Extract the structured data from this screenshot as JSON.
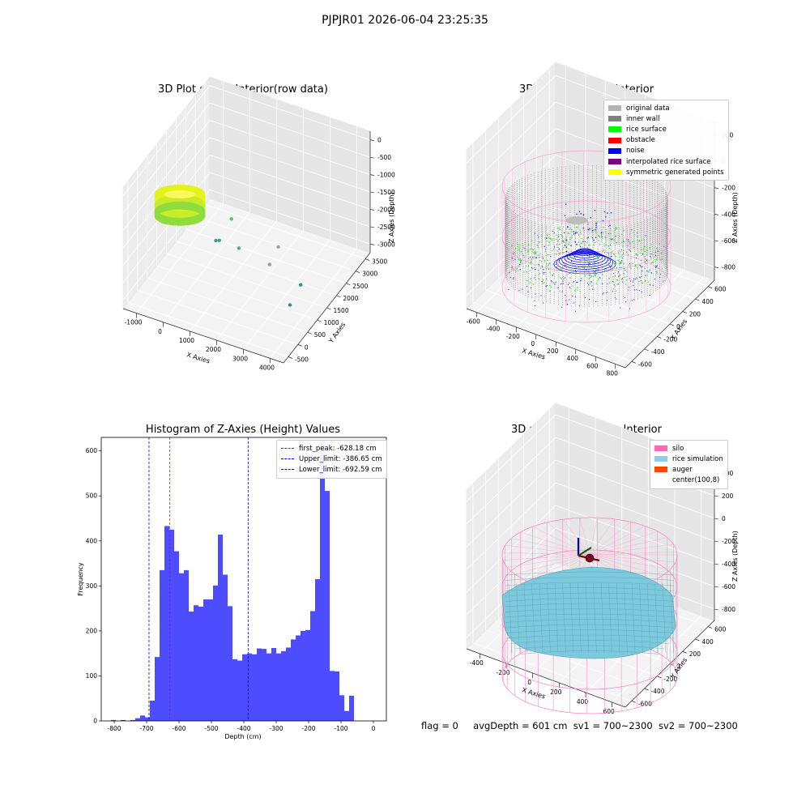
{
  "suptitle": "PJPJR01 2026-06-04 23:25:35",
  "panels": {
    "raw": {
      "title": "3D Plot of Silo Interior(row data)",
      "xlabel": "X Axies",
      "ylabel": "Y Axies",
      "zlabel": "Z Axies (Depth)",
      "xticks": [
        "-1000",
        "0",
        "1000",
        "2000",
        "3000",
        "4000"
      ],
      "yticks": [
        "-500",
        "0",
        "500",
        "1000",
        "1500",
        "2000",
        "2500",
        "3000",
        "3500"
      ],
      "zticks": [
        "0",
        "-500",
        "-1000",
        "-1500",
        "-2000",
        "-2500",
        "-3000"
      ]
    },
    "classify": {
      "title": "3D classify of Silo Interior",
      "xlabel": "X Axies",
      "ylabel": "Y Axies",
      "zlabel": "Z Axies (Depth)",
      "xticks": [
        "-600",
        "-400",
        "-200",
        "0",
        "200",
        "400",
        "600",
        "800"
      ],
      "yticks": [
        "-600",
        "-400",
        "-200",
        "0",
        "200",
        "400",
        "600"
      ],
      "zticks": [
        "200",
        "0",
        "-200",
        "-400",
        "-600",
        "-800"
      ],
      "legend": [
        {
          "label": "original data",
          "color": "#b3b3b3"
        },
        {
          "label": "inner wall",
          "color": "#808080"
        },
        {
          "label": "rice surface",
          "color": "#00ff00"
        },
        {
          "label": "obstacle",
          "color": "#ff0000"
        },
        {
          "label": "noise",
          "color": "#0000ff"
        },
        {
          "label": "interpolated rice surface",
          "color": "#800080"
        },
        {
          "label": "symmetric generated points",
          "color": "#ffff00"
        }
      ]
    },
    "histogram": {
      "title": "Histogram of Z-Axies (Height) Values",
      "legend": [
        {
          "label": "first_peak: -628.18 cm",
          "color": "#ff0000"
        },
        {
          "label": "Upper_limit: -386.65 cm",
          "color": "#0000ff"
        },
        {
          "label": "Lower_limit: -692.59 cm",
          "color": "#0000ff"
        }
      ]
    },
    "simulation": {
      "title": "3D simulation of Silo Interior",
      "xlabel": "X Axies",
      "ylabel": "Y Axies",
      "zlabel": "Z Axies (Depth)",
      "xticks": [
        "-400",
        "-200",
        "0",
        "200",
        "400",
        "600"
      ],
      "yticks": [
        "-600",
        "-400",
        "-200",
        "0",
        "200",
        "400",
        "600"
      ],
      "zticks": [
        "400",
        "200",
        "0",
        "-200",
        "-400",
        "-600",
        "-800"
      ],
      "legend": [
        {
          "label": "silo",
          "color": "#ff69b4"
        },
        {
          "label": "rice simulation",
          "color": "#87ceeb"
        },
        {
          "label": "auger",
          "color": "#ff4500"
        },
        {
          "label": "center(100,8)",
          "color": ""
        }
      ]
    }
  },
  "status": {
    "flag": "flag = 0",
    "avg_depth": "avgDepth = 601 cm",
    "sv1": "sv1 = 700~2300",
    "sv2": "sv2 = 700~2300"
  },
  "chart_data": [
    {
      "type": "scatter",
      "title": "3D Plot of Silo Interior(row data)",
      "xlabel": "X Axies",
      "ylabel": "Y Axies",
      "zlabel": "Z Axies (Depth)",
      "xlim": [
        -1300,
        4300
      ],
      "ylim": [
        -700,
        3700
      ],
      "zlim": [
        -3200,
        100
      ],
      "grid": true,
      "series": [
        {
          "values": [
            {
              "x": 0,
              "y": 0,
              "z": -1200
            },
            {
              "x": 900,
              "y": 1600,
              "z": -1750
            },
            {
              "x": 700,
              "y": 1100,
              "z": -2050
            },
            {
              "x": 750,
              "y": 1200,
              "z": -2100
            },
            {
              "x": 1300,
              "y": 1400,
              "z": -2300
            },
            {
              "x": 2400,
              "y": 1800,
              "z": -2250
            },
            {
              "x": 2300,
              "y": 1500,
              "z": -2550
            },
            {
              "x": 3800,
              "y": 900,
              "z": -2300
            },
            {
              "x": 3700,
              "y": 500,
              "z": -2600
            }
          ]
        }
      ]
    },
    {
      "type": "scatter",
      "title": "3D classify of Silo Interior",
      "xlabel": "X Axies",
      "ylabel": "Y Axies",
      "zlabel": "Z Axies (Depth)",
      "xlim": [
        -650,
        850
      ],
      "ylim": [
        -650,
        700
      ],
      "zlim": [
        -900,
        350
      ],
      "grid": true,
      "legend_position": "top-right",
      "series": [
        {
          "name": "original data"
        },
        {
          "name": "inner wall"
        },
        {
          "name": "rice surface"
        },
        {
          "name": "obstacle"
        },
        {
          "name": "noise"
        },
        {
          "name": "interpolated rice surface"
        },
        {
          "name": "symmetric generated points"
        }
      ]
    },
    {
      "type": "bar",
      "title": "Histogram of Z-Axies (Height) Values",
      "xlabel": "Depth (cm)",
      "ylabel": "Frequency",
      "xlim": [
        -840,
        40
      ],
      "ylim": [
        0,
        630
      ],
      "xticks": [
        -800,
        -700,
        -600,
        -500,
        -400,
        -300,
        -200,
        -100,
        0
      ],
      "yticks": [
        0,
        100,
        200,
        300,
        400,
        500,
        600
      ],
      "bin_edges": [
        -810,
        -795,
        -780,
        -765,
        -750,
        -735,
        -720,
        -705,
        -690,
        -675,
        -660,
        -645,
        -630,
        -615,
        -600,
        -585,
        -570,
        -555,
        -540,
        -525,
        -510,
        -495,
        -480,
        -465,
        -450,
        -435,
        -420,
        -405,
        -390,
        -375,
        -360,
        -345,
        -330,
        -315,
        -300,
        -285,
        -270,
        -255,
        -240,
        -225,
        -210,
        -195,
        -180,
        -165,
        -150,
        -135,
        -120,
        -105,
        -90,
        -75,
        -60,
        -45,
        -30,
        -15,
        0
      ],
      "values": [
        2,
        0,
        2,
        0,
        2,
        6,
        12,
        8,
        45,
        142,
        335,
        433,
        425,
        377,
        328,
        335,
        243,
        257,
        254,
        270,
        270,
        301,
        414,
        325,
        255,
        137,
        134,
        148,
        150,
        148,
        161,
        160,
        150,
        162,
        150,
        155,
        163,
        181,
        190,
        200,
        202,
        244,
        315,
        624,
        511,
        111,
        110,
        57,
        22,
        56,
        0,
        0,
        0,
        0
      ],
      "vlines": [
        {
          "label": "first_peak: -628.18 cm",
          "x": -628.18,
          "color": "#ff0000"
        },
        {
          "label": "Upper_limit: -386.65 cm",
          "x": -386.65,
          "color": "#0000ff"
        },
        {
          "label": "Lower_limit: -692.59 cm",
          "x": -692.59,
          "color": "#0000ff"
        }
      ],
      "bar_color": "#4d4dff",
      "legend_position": "top-right"
    },
    {
      "type": "scatter",
      "title": "3D simulation of Silo Interior",
      "xlabel": "X Axies",
      "ylabel": "Y Axies",
      "zlabel": "Z Axies (Depth)",
      "xlim": [
        -550,
        750
      ],
      "ylim": [
        -650,
        700
      ],
      "zlim": [
        -900,
        450
      ],
      "grid": true,
      "legend_position": "top-right",
      "series": [
        {
          "name": "silo"
        },
        {
          "name": "rice simulation"
        },
        {
          "name": "auger"
        },
        {
          "name": "center(100,8)",
          "values": [
            {
              "x": 100,
              "y": 8
            }
          ]
        }
      ]
    }
  ]
}
